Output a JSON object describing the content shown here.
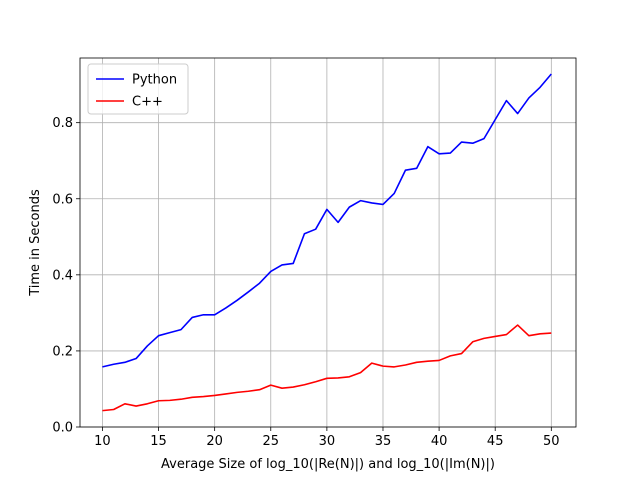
{
  "chart_data": {
    "type": "line",
    "title": "",
    "xlabel": "Average Size of log_10(|Re(N)|) and log_10(|Im(N)|)",
    "ylabel": "Time in Seconds",
    "xlim": [
      8,
      52.2
    ],
    "ylim": [
      0,
      0.97
    ],
    "xticks": [
      10,
      15,
      20,
      25,
      30,
      35,
      40,
      45,
      50
    ],
    "yticks": [
      0.0,
      0.2,
      0.4,
      0.6,
      0.8
    ],
    "ytick_labels": [
      "0.0",
      "0.2",
      "0.4",
      "0.6",
      "0.8"
    ],
    "grid": true,
    "legend_position": "top-left",
    "x": [
      10,
      11,
      12,
      13,
      14,
      15,
      16,
      17,
      18,
      19,
      20,
      21,
      22,
      23,
      24,
      25,
      26,
      27,
      28,
      29,
      30,
      31,
      32,
      33,
      34,
      35,
      36,
      37,
      38,
      39,
      40,
      41,
      42,
      43,
      44,
      45,
      46,
      47,
      48,
      49,
      50
    ],
    "series": [
      {
        "name": "Python",
        "color": "#0000ff",
        "values": [
          0.158,
          0.165,
          0.17,
          0.18,
          0.213,
          0.24,
          0.248,
          0.256,
          0.288,
          0.295,
          0.295,
          0.313,
          0.333,
          0.355,
          0.378,
          0.409,
          0.426,
          0.43,
          0.508,
          0.52,
          0.572,
          0.538,
          0.578,
          0.595,
          0.589,
          0.585,
          0.614,
          0.675,
          0.68,
          0.737,
          0.718,
          0.72,
          0.749,
          0.746,
          0.758,
          0.808,
          0.858,
          0.824,
          0.865,
          0.893,
          0.928
        ]
      },
      {
        "name": "C++",
        "color": "#ff0000",
        "values": [
          0.043,
          0.046,
          0.061,
          0.055,
          0.061,
          0.069,
          0.07,
          0.073,
          0.078,
          0.08,
          0.083,
          0.087,
          0.091,
          0.094,
          0.098,
          0.11,
          0.102,
          0.105,
          0.111,
          0.119,
          0.128,
          0.129,
          0.132,
          0.143,
          0.168,
          0.16,
          0.158,
          0.163,
          0.17,
          0.173,
          0.175,
          0.187,
          0.193,
          0.224,
          0.233,
          0.238,
          0.243,
          0.268,
          0.24,
          0.245,
          0.247
        ]
      }
    ]
  }
}
